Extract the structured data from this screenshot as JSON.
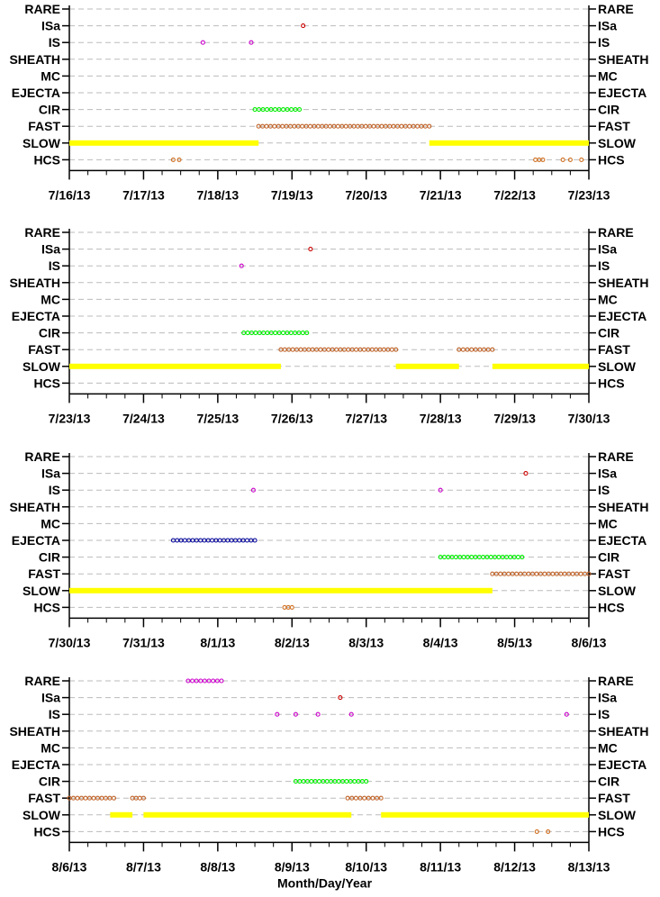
{
  "colors": {
    "RARE": "#cc00cc",
    "ISa": "#cc0000",
    "IS": "#cc00cc",
    "EJECTA": "#000099",
    "CIR": "#00ee00",
    "FAST": "#c0642a",
    "SLOW": "#ffff00",
    "HCS": "#d07020",
    "grid": "#bbbbbb"
  },
  "chart_data": [
    {
      "type": "scatter",
      "categories": [
        "RARE",
        "ISa",
        "IS",
        "SHEATH",
        "MC",
        "EJECTA",
        "CIR",
        "FAST",
        "SLOW",
        "HCS"
      ],
      "x_ticks": [
        "7/16/13",
        "7/17/13",
        "7/18/13",
        "7/19/13",
        "7/20/13",
        "7/21/13",
        "7/22/13",
        "7/23/13"
      ],
      "x_range_days": [
        0,
        7
      ],
      "grid": true,
      "series": [
        {
          "name": "ISa",
          "points": [
            3.15
          ]
        },
        {
          "name": "IS",
          "points": [
            1.8,
            2.45
          ]
        },
        {
          "name": "CIR",
          "ranges": [
            [
              2.5,
              3.1
            ]
          ]
        },
        {
          "name": "FAST",
          "ranges": [
            [
              2.55,
              4.85
            ]
          ]
        },
        {
          "name": "SLOW",
          "ranges": [
            [
              0.0,
              2.55
            ],
            [
              4.85,
              7.0
            ]
          ]
        },
        {
          "name": "HCS",
          "points": [
            1.4,
            1.48,
            6.28,
            6.33,
            6.38,
            6.65,
            6.75,
            6.9
          ]
        }
      ]
    },
    {
      "type": "scatter",
      "categories": [
        "RARE",
        "ISa",
        "IS",
        "SHEATH",
        "MC",
        "EJECTA",
        "CIR",
        "FAST",
        "SLOW",
        "HCS"
      ],
      "x_ticks": [
        "7/23/13",
        "7/24/13",
        "7/25/13",
        "7/26/13",
        "7/27/13",
        "7/28/13",
        "7/29/13",
        "7/30/13"
      ],
      "x_range_days": [
        0,
        7
      ],
      "grid": true,
      "series": [
        {
          "name": "ISa",
          "points": [
            3.25
          ]
        },
        {
          "name": "IS",
          "points": [
            2.32
          ]
        },
        {
          "name": "CIR",
          "ranges": [
            [
              2.35,
              3.2
            ]
          ]
        },
        {
          "name": "FAST",
          "ranges": [
            [
              2.85,
              4.4
            ],
            [
              5.25,
              5.7
            ]
          ]
        },
        {
          "name": "SLOW",
          "ranges": [
            [
              0.0,
              2.85
            ],
            [
              4.4,
              5.25
            ],
            [
              5.7,
              7.0
            ]
          ]
        }
      ]
    },
    {
      "type": "scatter",
      "categories": [
        "RARE",
        "ISa",
        "IS",
        "SHEATH",
        "MC",
        "EJECTA",
        "CIR",
        "FAST",
        "SLOW",
        "HCS"
      ],
      "x_ticks": [
        "7/30/13",
        "7/31/13",
        "8/1/13",
        "8/2/13",
        "8/3/13",
        "8/4/13",
        "8/5/13",
        "8/6/13"
      ],
      "x_range_days": [
        0,
        7
      ],
      "grid": true,
      "series": [
        {
          "name": "ISa",
          "points": [
            6.15
          ]
        },
        {
          "name": "IS",
          "points": [
            2.48,
            5.0
          ]
        },
        {
          "name": "EJECTA",
          "ranges": [
            [
              1.4,
              2.5
            ]
          ]
        },
        {
          "name": "CIR",
          "ranges": [
            [
              5.0,
              6.1
            ]
          ]
        },
        {
          "name": "FAST",
          "ranges": [
            [
              5.7,
              7.0
            ]
          ]
        },
        {
          "name": "SLOW",
          "ranges": [
            [
              0.0,
              5.7
            ]
          ]
        },
        {
          "name": "HCS",
          "points": [
            2.9,
            2.95,
            3.0
          ]
        }
      ]
    },
    {
      "type": "scatter",
      "categories": [
        "RARE",
        "ISa",
        "IS",
        "SHEATH",
        "MC",
        "EJECTA",
        "CIR",
        "FAST",
        "SLOW",
        "HCS"
      ],
      "x_ticks": [
        "8/6/13",
        "8/7/13",
        "8/8/13",
        "8/9/13",
        "8/10/13",
        "8/11/13",
        "8/12/13",
        "8/13/13"
      ],
      "x_range_days": [
        0,
        7
      ],
      "xlabel": "Month/Day/Year",
      "grid": true,
      "series": [
        {
          "name": "RARE",
          "ranges": [
            [
              1.6,
              2.05
            ]
          ]
        },
        {
          "name": "ISa",
          "points": [
            3.65
          ]
        },
        {
          "name": "IS",
          "points": [
            2.8,
            3.05,
            3.35,
            3.8,
            6.7
          ]
        },
        {
          "name": "CIR",
          "ranges": [
            [
              3.05,
              4.0
            ]
          ]
        },
        {
          "name": "FAST",
          "ranges": [
            [
              0.0,
              0.6
            ],
            [
              0.85,
              1.0
            ],
            [
              3.75,
              4.2
            ]
          ]
        },
        {
          "name": "SLOW",
          "ranges": [
            [
              0.55,
              0.85
            ],
            [
              1.0,
              3.8
            ],
            [
              4.2,
              7.0
            ]
          ]
        },
        {
          "name": "HCS",
          "points": [
            6.3,
            6.45
          ]
        }
      ]
    }
  ]
}
